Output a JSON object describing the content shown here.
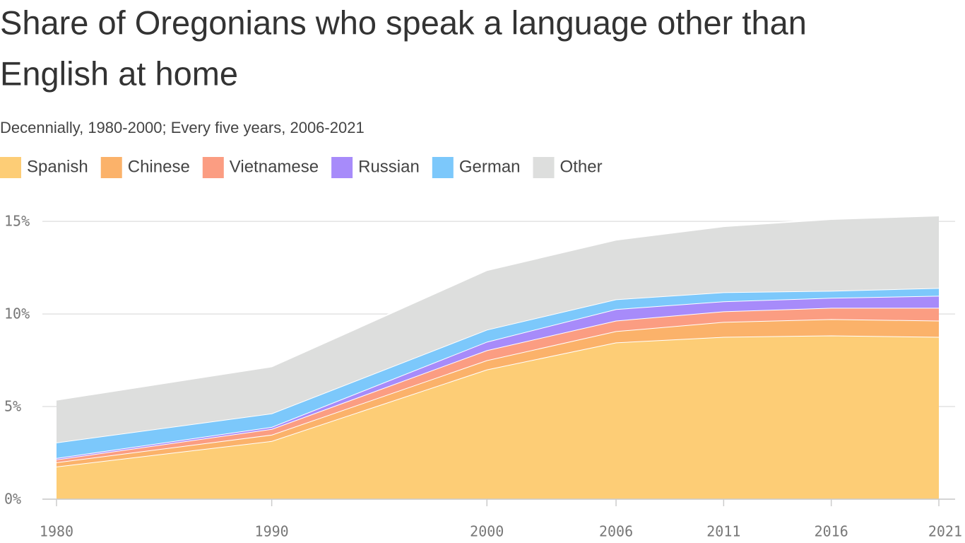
{
  "chart_data": {
    "type": "stacked-area",
    "title": [
      "Share of Oregonians who speak a language other than",
      "English at home"
    ],
    "subtitle": "Decennially, 1980-2000; Every five years, 2006-2021",
    "x": [
      1980,
      1990,
      2000,
      2006,
      2011,
      2016,
      2021
    ],
    "series": [
      {
        "name": "Spanish",
        "color": "#fdcd76",
        "values": [
          1.76,
          3.14,
          7.0,
          8.46,
          8.76,
          8.84,
          8.76
        ]
      },
      {
        "name": "Chinese",
        "color": "#fbb26a",
        "values": [
          0.23,
          0.34,
          0.5,
          0.61,
          0.81,
          0.88,
          0.88
        ]
      },
      {
        "name": "Vietnamese",
        "color": "#fb9d82",
        "values": [
          0.15,
          0.31,
          0.54,
          0.57,
          0.57,
          0.61,
          0.69
        ]
      },
      {
        "name": "Russian",
        "color": "#a78bfa",
        "values": [
          0.08,
          0.11,
          0.46,
          0.62,
          0.54,
          0.54,
          0.65
        ]
      },
      {
        "name": "German",
        "color": "#7cc8fb",
        "values": [
          0.84,
          0.73,
          0.65,
          0.53,
          0.49,
          0.38,
          0.42
        ]
      },
      {
        "name": "Other",
        "color": "#dddedd",
        "values": [
          2.3,
          2.53,
          3.21,
          3.21,
          3.56,
          3.87,
          3.91
        ]
      }
    ],
    "xlim": [
      1980,
      2021
    ],
    "xticks": [
      1980,
      1990,
      2000,
      2006,
      2011,
      2016,
      2021
    ],
    "ylim": [
      0,
      15.5
    ],
    "yticks": [
      {
        "value": 0,
        "label": "0%"
      },
      {
        "value": 5,
        "label": "5%"
      },
      {
        "value": 10,
        "label": "10%"
      },
      {
        "value": 15,
        "label": "15%"
      }
    ],
    "grid": true
  }
}
